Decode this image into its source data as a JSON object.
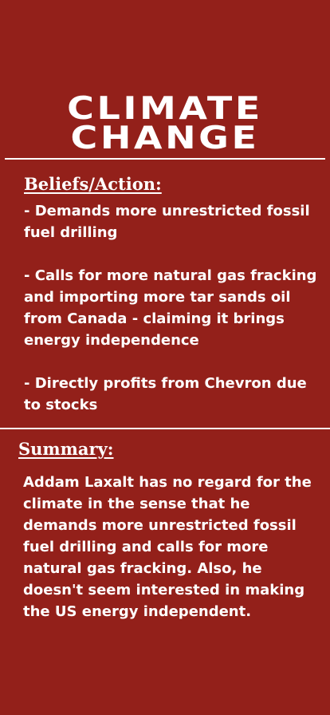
{
  "title": {
    "line1": "CLIMATE",
    "line2": "CHANGE"
  },
  "beliefs": {
    "heading": "Beliefs/Action:",
    "items": [
      "- Demands more unrestricted fossil fuel drilling",
      "- Calls for more natural gas fracking and importing more tar sands oil from Canada - claiming it brings energy independence",
      "- Directly profits from Chevron due to stocks"
    ]
  },
  "summary": {
    "heading": "Summary:",
    "text": "Addam Laxalt has no regard for the climate in the sense that he demands more unrestricted fossil fuel drilling and calls for more natural gas fracking. Also, he doesn't seem interested in making the US energy independent."
  },
  "colors": {
    "background": "#93201a",
    "text": "#ffffff"
  }
}
